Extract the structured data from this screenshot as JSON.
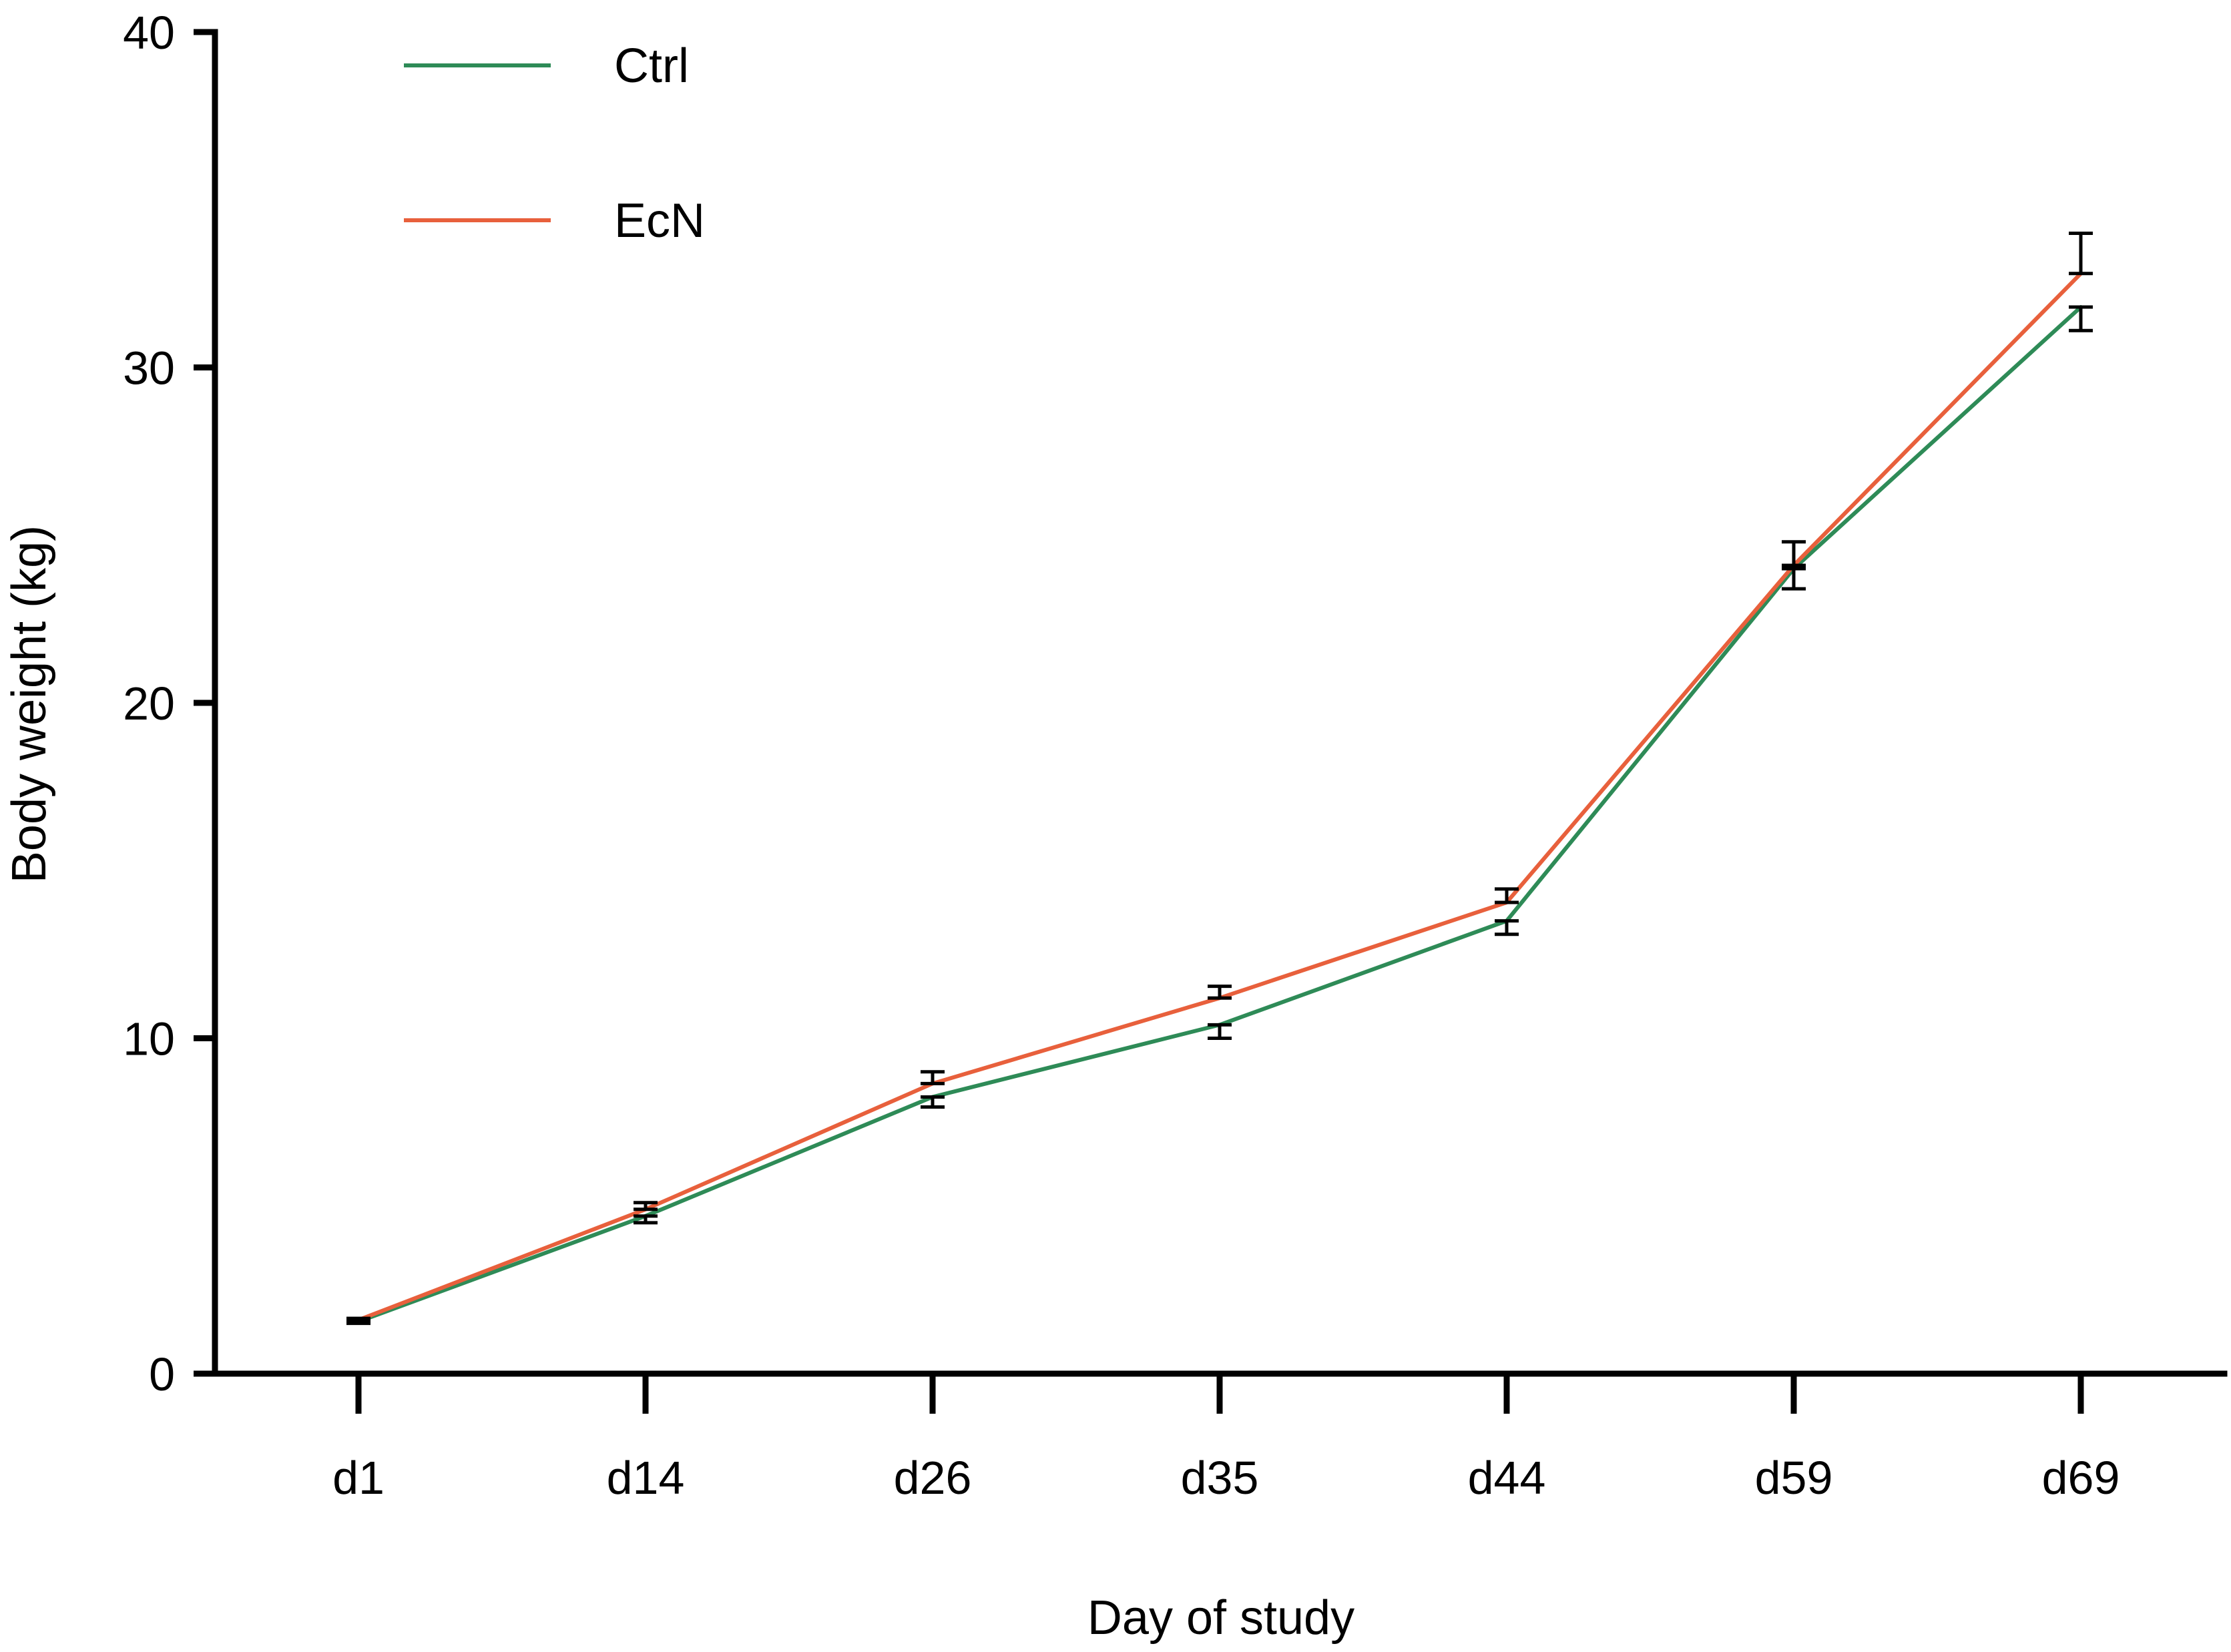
{
  "chart_data": {
    "type": "line",
    "categories": [
      "d1",
      "d14",
      "d26",
      "d35",
      "d44",
      "d59",
      "d69"
    ],
    "series": [
      {
        "name": "Ctrl",
        "color": "#2e8b57",
        "values": [
          1.55,
          4.7,
          8.25,
          10.4,
          13.5,
          24.0,
          31.8
        ],
        "error": [
          0.05,
          0.2,
          0.3,
          0.4,
          0.4,
          0.6,
          0.7
        ]
      },
      {
        "name": "EcN",
        "color": "#e8603c",
        "values": [
          1.6,
          4.9,
          8.65,
          11.2,
          14.05,
          24.1,
          32.8
        ],
        "error": [
          0.05,
          0.2,
          0.35,
          0.35,
          0.4,
          0.7,
          1.2
        ]
      }
    ],
    "xlabel": "Day of study",
    "ylabel": "Body weight (kg)",
    "ylim": [
      0,
      40
    ],
    "yticks": [
      "0",
      "10",
      "20",
      "30",
      "40"
    ],
    "grid": false,
    "legend_position": "top-left"
  }
}
